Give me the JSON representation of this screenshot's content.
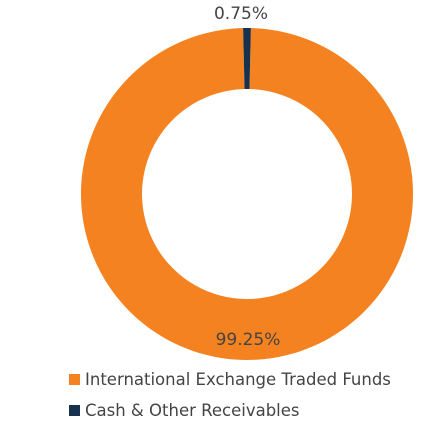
{
  "chart_data": {
    "type": "pie",
    "variant": "donut",
    "title": "",
    "slices": [
      {
        "label": "International Exchange Traded Funds",
        "value": 99.25,
        "display": "99.25%",
        "color": "#f58220"
      },
      {
        "label": "Cash & Other Receivables",
        "value": 0.75,
        "display": "0.75%",
        "color": "#16324f"
      }
    ],
    "legend_position": "bottom-left"
  },
  "colors": {
    "label_text": "#444444",
    "legend_text": "#444444",
    "background": "#ffffff"
  }
}
